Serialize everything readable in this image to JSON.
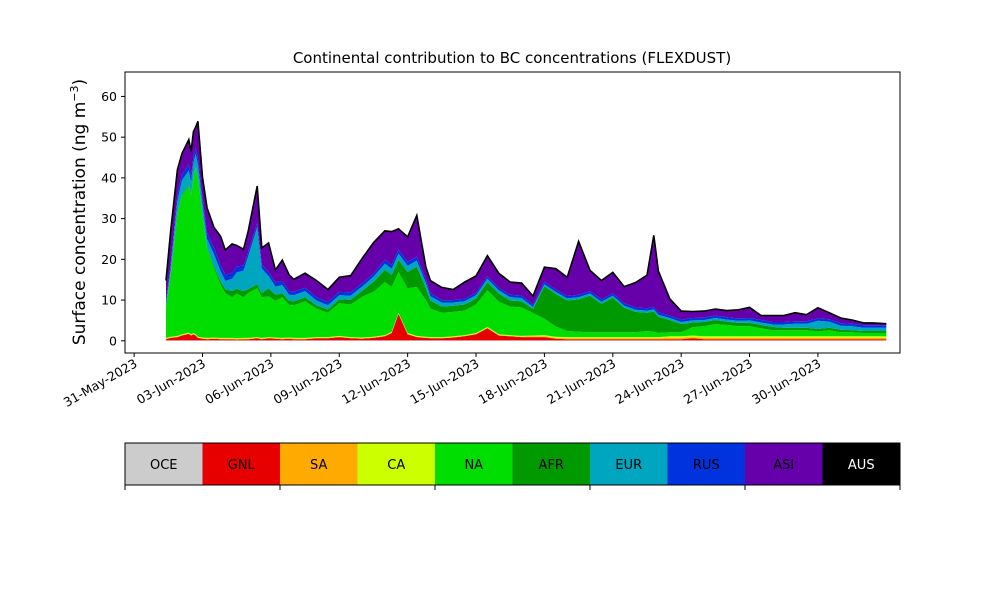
{
  "chart_data": {
    "type": "area",
    "title": "Continental contribution to BC concentrations (FLEXDUST)",
    "ylabel_main": "Surface concentration (ng m",
    "ylabel_sup": "−3",
    "ylabel_end": ")",
    "ylim": [
      -3,
      66
    ],
    "yticks": [
      0,
      10,
      20,
      30,
      40,
      50,
      60
    ],
    "xlim_days": [
      -0.4,
      33.6
    ],
    "xticks": [
      {
        "day": 0,
        "label": "31-May-2023"
      },
      {
        "day": 3,
        "label": "03-Jun-2023"
      },
      {
        "day": 6,
        "label": "06-Jun-2023"
      },
      {
        "day": 9,
        "label": "09-Jun-2023"
      },
      {
        "day": 12,
        "label": "12-Jun-2023"
      },
      {
        "day": 15,
        "label": "15-Jun-2023"
      },
      {
        "day": 18,
        "label": "18-Jun-2023"
      },
      {
        "day": 21,
        "label": "21-Jun-2023"
      },
      {
        "day": 24,
        "label": "24-Jun-2023"
      },
      {
        "day": 27,
        "label": "27-Jun-2023"
      },
      {
        "day": 30,
        "label": "30-Jun-2023"
      }
    ],
    "x_days": [
      1.4,
      1.6,
      1.9,
      2.1,
      2.4,
      2.5,
      2.6,
      2.7,
      2.8,
      3.0,
      3.2,
      3.5,
      3.8,
      4.0,
      4.3,
      4.5,
      4.8,
      5.0,
      5.4,
      5.6,
      5.9,
      6.2,
      6.5,
      6.8,
      7.0,
      7.5,
      8.0,
      8.5,
      9.0,
      9.5,
      10.0,
      10.5,
      11.0,
      11.3,
      11.6,
      12.0,
      12.4,
      12.8,
      13.0,
      13.5,
      14.0,
      14.5,
      15.0,
      15.5,
      16.0,
      16.5,
      17.0,
      17.5,
      18.0,
      18.5,
      19.0,
      19.5,
      20.0,
      20.5,
      21.0,
      21.5,
      22.0,
      22.5,
      22.8,
      23.0,
      23.5,
      24.0,
      24.5,
      25.0,
      25.5,
      26.0,
      26.5,
      27.0,
      27.5,
      28.0,
      28.5,
      29.0,
      29.5,
      30.0,
      30.5,
      31.0,
      31.5,
      32.0,
      32.4,
      33.0
    ],
    "series": [
      {
        "name": "OCE",
        "color": "#cccccc",
        "values": [
          0.1,
          0.1,
          0.1,
          0.1,
          0.1,
          0.1,
          0.1,
          0.1,
          0.1,
          0.1,
          0.1,
          0.1,
          0.1,
          0.1,
          0.1,
          0.1,
          0.1,
          0.1,
          0.1,
          0.1,
          0.1,
          0.1,
          0.1,
          0.1,
          0.1,
          0.1,
          0.1,
          0.1,
          0.1,
          0.1,
          0.1,
          0.1,
          0.1,
          0.1,
          0.1,
          0.1,
          0.1,
          0.1,
          0.1,
          0.1,
          0.1,
          0.1,
          0.1,
          0.1,
          0.1,
          0.1,
          0.1,
          0.1,
          0.1,
          0.1,
          0.1,
          0.1,
          0.1,
          0.1,
          0.1,
          0.1,
          0.1,
          0.1,
          0.1,
          0.1,
          0.1,
          0.1,
          0.1,
          0.1,
          0.1,
          0.1,
          0.1,
          0.1,
          0.1,
          0.1,
          0.1,
          0.1,
          0.1,
          0.1,
          0.1,
          0.1,
          0.1,
          0.1,
          0.1,
          0.1
        ]
      },
      {
        "name": "GNL",
        "color": "#e60000",
        "values": [
          0.3,
          0.6,
          0.8,
          1.2,
          1.6,
          1.2,
          1.5,
          1.2,
          0.6,
          0.4,
          0.3,
          0.4,
          0.3,
          0.3,
          0.3,
          0.2,
          0.3,
          0.3,
          0.5,
          0.3,
          0.5,
          0.4,
          0.3,
          0.4,
          0.3,
          0.3,
          0.5,
          0.5,
          0.8,
          0.5,
          0.4,
          0.6,
          1.0,
          1.8,
          6.5,
          1.5,
          0.8,
          0.6,
          0.5,
          0.5,
          0.7,
          1.0,
          1.5,
          3.0,
          1.2,
          1.0,
          0.8,
          0.8,
          0.8,
          0.4,
          0.3,
          0.3,
          0.3,
          0.3,
          0.3,
          0.3,
          0.3,
          0.3,
          0.3,
          0.3,
          0.3,
          0.3,
          0.5,
          0.3,
          0.3,
          0.3,
          0.3,
          0.3,
          0.3,
          0.3,
          0.3,
          0.3,
          0.3,
          0.3,
          0.3,
          0.3,
          0.3,
          0.3,
          0.3,
          0.3
        ]
      },
      {
        "name": "SA",
        "color": "#ffaa00",
        "values": [
          0.1,
          0.1,
          0.1,
          0.1,
          0.1,
          0.1,
          0.1,
          0.1,
          0.1,
          0.1,
          0.1,
          0.1,
          0.1,
          0.1,
          0.1,
          0.1,
          0.1,
          0.1,
          0.1,
          0.1,
          0.1,
          0.1,
          0.1,
          0.1,
          0.1,
          0.1,
          0.1,
          0.1,
          0.1,
          0.1,
          0.1,
          0.1,
          0.1,
          0.1,
          0.1,
          0.1,
          0.1,
          0.1,
          0.1,
          0.1,
          0.1,
          0.1,
          0.1,
          0.1,
          0.1,
          0.1,
          0.1,
          0.2,
          0.2,
          0.2,
          0.2,
          0.2,
          0.2,
          0.2,
          0.2,
          0.2,
          0.2,
          0.2,
          0.2,
          0.2,
          0.3,
          0.3,
          0.3,
          0.3,
          0.3,
          0.3,
          0.3,
          0.3,
          0.3,
          0.3,
          0.3,
          0.3,
          0.3,
          0.3,
          0.3,
          0.3,
          0.3,
          0.3,
          0.3,
          0.3
        ]
      },
      {
        "name": "CA",
        "color": "#ccff00",
        "values": [
          0.2,
          0.2,
          0.2,
          0.2,
          0.2,
          0.2,
          0.2,
          0.2,
          0.2,
          0.2,
          0.2,
          0.2,
          0.2,
          0.2,
          0.2,
          0.2,
          0.2,
          0.2,
          0.2,
          0.2,
          0.2,
          0.2,
          0.2,
          0.2,
          0.2,
          0.2,
          0.2,
          0.2,
          0.2,
          0.2,
          0.2,
          0.2,
          0.2,
          0.2,
          0.2,
          0.2,
          0.2,
          0.2,
          0.2,
          0.2,
          0.2,
          0.2,
          0.2,
          0.2,
          0.2,
          0.2,
          0.2,
          0.2,
          0.3,
          0.3,
          0.3,
          0.3,
          0.3,
          0.3,
          0.3,
          0.3,
          0.3,
          0.3,
          0.3,
          0.3,
          0.4,
          0.4,
          0.4,
          0.4,
          0.4,
          0.4,
          0.4,
          0.4,
          0.4,
          0.4,
          0.4,
          0.4,
          0.4,
          0.4,
          0.4,
          0.4,
          0.4,
          0.4,
          0.4,
          0.4
        ]
      },
      {
        "name": "NA",
        "color": "#00dd00",
        "values": [
          7.5,
          15.0,
          30.0,
          34.0,
          36.0,
          34.0,
          38.0,
          41.0,
          39.0,
          30.0,
          22.0,
          17.0,
          13.0,
          11.0,
          10.0,
          11.0,
          10.0,
          11.0,
          12.0,
          10.0,
          10.0,
          9.0,
          10.0,
          8.0,
          8.0,
          9.0,
          7.0,
          6.0,
          8.0,
          8.0,
          10.0,
          11.0,
          13.0,
          11.0,
          10.0,
          11.0,
          12.0,
          9.0,
          7.0,
          6.0,
          6.0,
          6.0,
          7.0,
          9.0,
          8.0,
          7.0,
          7.0,
          5.5,
          4.0,
          2.5,
          1.5,
          1.3,
          1.2,
          1.2,
          1.2,
          1.2,
          1.2,
          1.5,
          1.3,
          1.0,
          1.0,
          1.0,
          2.0,
          2.5,
          3.0,
          2.8,
          2.5,
          2.5,
          2.0,
          1.5,
          1.5,
          1.5,
          1.5,
          1.2,
          1.5,
          1.0,
          1.0,
          0.8,
          0.8,
          0.8
        ]
      },
      {
        "name": "AFR",
        "color": "#009900",
        "values": [
          0.2,
          0.2,
          0.2,
          0.3,
          0.3,
          0.3,
          0.3,
          0.3,
          0.3,
          0.3,
          0.3,
          0.5,
          0.8,
          1.0,
          1.5,
          1.2,
          1.5,
          1.0,
          1.0,
          1.0,
          2.0,
          1.5,
          1.0,
          1.0,
          1.0,
          1.0,
          0.8,
          0.8,
          1.0,
          1.2,
          1.5,
          2.5,
          3.0,
          3.0,
          3.0,
          4.0,
          5.0,
          3.0,
          2.0,
          1.5,
          1.5,
          1.5,
          1.5,
          2.0,
          2.0,
          1.5,
          1.5,
          1.0,
          8.0,
          8.0,
          7.5,
          8.0,
          9.0,
          7.0,
          8.5,
          6.0,
          5.0,
          4.5,
          5.0,
          4.0,
          3.0,
          2.0,
          1.2,
          1.0,
          1.0,
          0.8,
          0.8,
          0.8,
          0.8,
          0.8,
          0.6,
          0.6,
          0.6,
          0.6,
          0.6,
          0.6,
          0.5,
          0.5,
          0.5,
          0.5
        ]
      },
      {
        "name": "EUR",
        "color": "#00a5c0",
        "values": [
          0.5,
          1.5,
          3.0,
          3.5,
          3.5,
          3.0,
          3.5,
          3.0,
          3.0,
          2.5,
          2.0,
          3.0,
          2.5,
          2.0,
          3.0,
          4.0,
          5.0,
          8.0,
          14.0,
          6.0,
          3.0,
          2.0,
          2.0,
          1.5,
          1.5,
          1.5,
          1.2,
          1.0,
          1.0,
          1.0,
          1.0,
          1.2,
          1.5,
          1.5,
          1.5,
          1.5,
          1.5,
          1.2,
          1.0,
          1.0,
          0.8,
          0.8,
          0.8,
          0.8,
          0.8,
          0.8,
          0.8,
          0.5,
          0.5,
          0.5,
          0.5,
          0.5,
          0.5,
          0.5,
          0.5,
          0.5,
          0.5,
          0.5,
          0.5,
          0.5,
          0.5,
          0.5,
          0.5,
          0.5,
          0.5,
          0.5,
          0.5,
          0.6,
          0.6,
          0.6,
          0.8,
          1.0,
          1.0,
          2.0,
          1.5,
          1.0,
          1.0,
          0.8,
          0.8,
          0.8
        ]
      },
      {
        "name": "RUS",
        "color": "#0033dd",
        "values": [
          0.8,
          1.0,
          1.5,
          1.5,
          1.5,
          1.5,
          1.5,
          1.5,
          1.5,
          1.5,
          1.5,
          1.5,
          1.5,
          1.5,
          1.5,
          1.5,
          1.2,
          1.0,
          1.0,
          1.0,
          1.0,
          1.0,
          1.0,
          0.8,
          0.8,
          0.8,
          0.8,
          0.8,
          0.8,
          0.8,
          0.8,
          0.8,
          1.0,
          1.0,
          1.0,
          1.0,
          1.0,
          0.8,
          0.8,
          0.6,
          0.6,
          0.6,
          0.6,
          0.6,
          0.6,
          0.6,
          0.6,
          0.6,
          0.6,
          0.6,
          0.6,
          0.6,
          0.6,
          0.6,
          0.6,
          0.6,
          0.6,
          0.6,
          0.6,
          0.6,
          0.6,
          0.6,
          0.6,
          0.6,
          0.6,
          0.6,
          0.6,
          0.6,
          0.6,
          0.6,
          0.6,
          0.6,
          0.6,
          0.6,
          0.6,
          0.6,
          0.6,
          0.6,
          0.6,
          0.6
        ]
      },
      {
        "name": "ASI",
        "color": "#6600aa",
        "values": [
          5.0,
          8.0,
          6.0,
          5.0,
          6.0,
          6.0,
          6.0,
          5.0,
          9.0,
          5.0,
          6.0,
          5.0,
          7.0,
          6.0,
          7.0,
          5.0,
          4.0,
          5.0,
          9.0,
          4.0,
          7.0,
          3.0,
          5.0,
          4.0,
          3.0,
          3.5,
          4.0,
          3.0,
          3.5,
          4.0,
          6.0,
          7.5,
          7.0,
          8.0,
          5.0,
          6.0,
          10.0,
          3.0,
          3.0,
          3.0,
          2.5,
          4.0,
          4.0,
          5.0,
          3.5,
          3.0,
          3.0,
          2.0,
          3.5,
          5.0,
          4.5,
          13.0,
          5.0,
          4.5,
          5.0,
          4.0,
          6.0,
          8.0,
          17.5,
          10.0,
          4.0,
          2.0,
          1.5,
          1.5,
          1.5,
          1.5,
          2.0,
          2.5,
          1.0,
          1.5,
          1.5,
          2.0,
          1.5,
          2.5,
          1.5,
          1.2,
          0.8,
          0.5,
          0.5,
          0.3
        ]
      },
      {
        "name": "AUS",
        "color": "#000000",
        "values": [
          0.1,
          0.1,
          0.1,
          0.1,
          0.1,
          0.1,
          0.1,
          0.1,
          0.1,
          0.1,
          0.1,
          0.1,
          0.1,
          0.1,
          0.1,
          0.1,
          0.1,
          0.1,
          0.1,
          0.1,
          0.1,
          0.1,
          0.1,
          0.1,
          0.1,
          0.1,
          0.1,
          0.1,
          0.1,
          0.1,
          0.1,
          0.1,
          0.1,
          0.1,
          0.1,
          0.1,
          0.1,
          0.1,
          0.1,
          0.1,
          0.1,
          0.1,
          0.1,
          0.1,
          0.1,
          0.1,
          0.1,
          0.1,
          0.1,
          0.1,
          0.1,
          0.1,
          0.1,
          0.1,
          0.1,
          0.1,
          0.1,
          0.1,
          0.1,
          0.1,
          0.1,
          0.1,
          0.1,
          0.1,
          0.1,
          0.1,
          0.1,
          0.1,
          0.1,
          0.1,
          0.1,
          0.1,
          0.1,
          0.1,
          0.1,
          0.1,
          0.1,
          0.1,
          0.1,
          0.1
        ]
      }
    ],
    "total_outline_color": "#000000",
    "colorbar": [
      {
        "label": "OCE",
        "color": "#cccccc",
        "text_color": "#000000"
      },
      {
        "label": "GNL",
        "color": "#e60000",
        "text_color": "#000000"
      },
      {
        "label": "SA",
        "color": "#ffaa00",
        "text_color": "#000000"
      },
      {
        "label": "CA",
        "color": "#ccff00",
        "text_color": "#000000"
      },
      {
        "label": "NA",
        "color": "#00dd00",
        "text_color": "#000000"
      },
      {
        "label": "AFR",
        "color": "#009900",
        "text_color": "#000000"
      },
      {
        "label": "EUR",
        "color": "#00a5c0",
        "text_color": "#000000"
      },
      {
        "label": "RUS",
        "color": "#0033dd",
        "text_color": "#000000"
      },
      {
        "label": "ASI",
        "color": "#6600aa",
        "text_color": "#000000"
      },
      {
        "label": "AUS",
        "color": "#000000",
        "text_color": "#ffffff"
      }
    ],
    "grid": false
  }
}
